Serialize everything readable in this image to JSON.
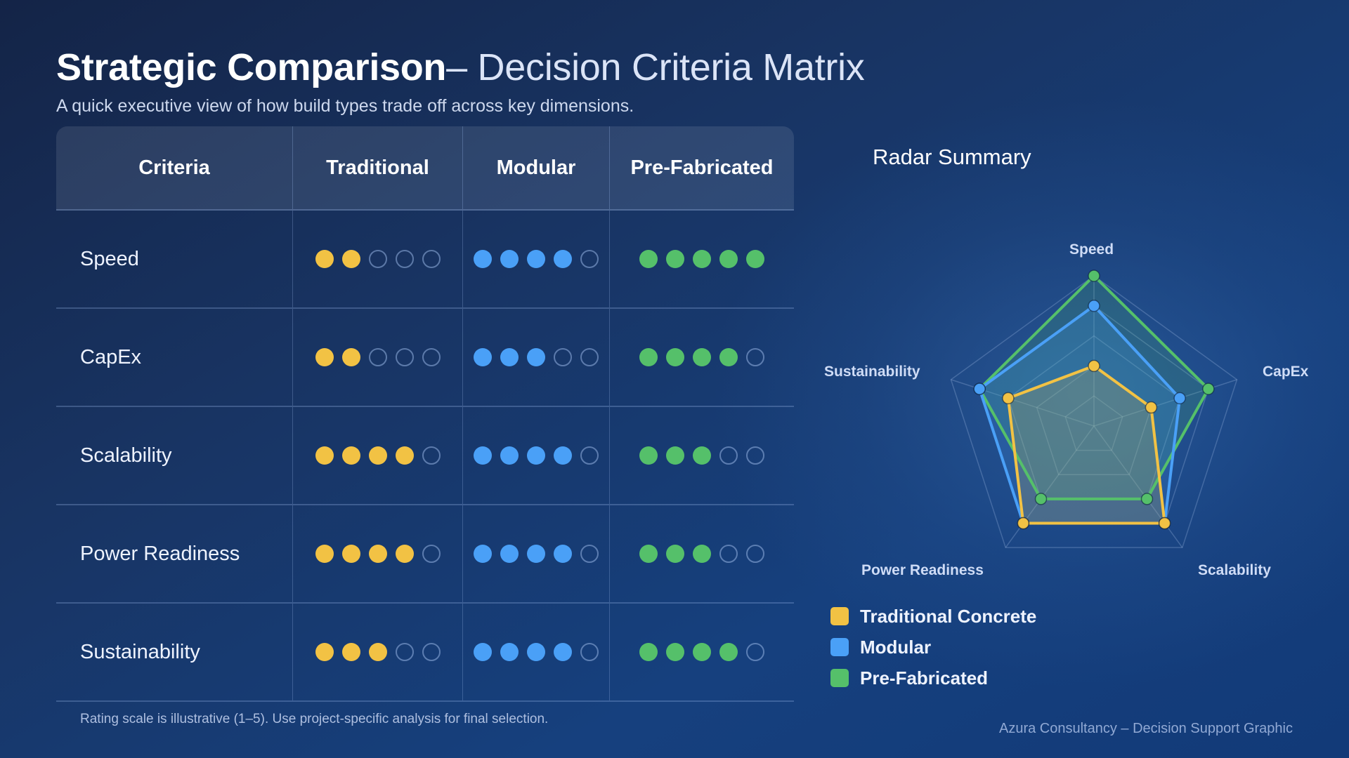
{
  "header": {
    "title_strong": "Strategic Comparison",
    "title_light": "– Decision Criteria Matrix",
    "subtitle": "A quick executive view of how build types trade off across key dimensions."
  },
  "table": {
    "columns": [
      "Criteria",
      "Traditional",
      "Modular",
      "Pre-Fabricated"
    ],
    "max_rating": 5,
    "rows": [
      {
        "criteria": "Speed",
        "ratings": [
          2,
          4,
          5
        ]
      },
      {
        "criteria": "CapEx",
        "ratings": [
          2,
          3,
          4
        ]
      },
      {
        "criteria": "Scalability",
        "ratings": [
          4,
          4,
          3
        ]
      },
      {
        "criteria": "Power Readiness",
        "ratings": [
          4,
          4,
          3
        ]
      },
      {
        "criteria": "Sustainability",
        "ratings": [
          3,
          4,
          4
        ]
      }
    ],
    "footnote": "Rating scale is illustrative (1–5). Use project-specific analysis for final selection."
  },
  "colors": {
    "traditional": "#f2c244",
    "modular": "#4aa0f7",
    "prefabricated": "#55c06a",
    "empty_dot_outline": "#96b2e2"
  },
  "radar": {
    "title": "Radar Summary",
    "axes": [
      "Speed",
      "CapEx",
      "Scalability",
      "Power Readiness",
      "Sustainability"
    ]
  },
  "legend": [
    {
      "label": "Traditional Concrete",
      "color": "#f2c244"
    },
    {
      "label": "Modular",
      "color": "#4aa0f7"
    },
    {
      "label": "Pre-Fabricated",
      "color": "#55c06a"
    }
  ],
  "footer": {
    "credit": "Azura Consultancy – Decision Support Graphic"
  },
  "chart_data": {
    "type": "radar",
    "title": "Radar Summary",
    "categories": [
      "Speed",
      "CapEx",
      "Scalability",
      "Power Readiness",
      "Sustainability"
    ],
    "series": [
      {
        "name": "Traditional Concrete",
        "values": [
          2,
          2,
          4,
          4,
          3
        ],
        "color": "#f2c244"
      },
      {
        "name": "Modular",
        "values": [
          4,
          3,
          4,
          4,
          4
        ],
        "color": "#4aa0f7"
      },
      {
        "name": "Pre-Fabricated",
        "values": [
          5,
          4,
          3,
          3,
          4
        ],
        "color": "#55c06a"
      }
    ],
    "range": [
      0,
      5
    ],
    "grid_levels": 5,
    "legend_position": "bottom-left",
    "xlabel": "",
    "ylabel": ""
  }
}
